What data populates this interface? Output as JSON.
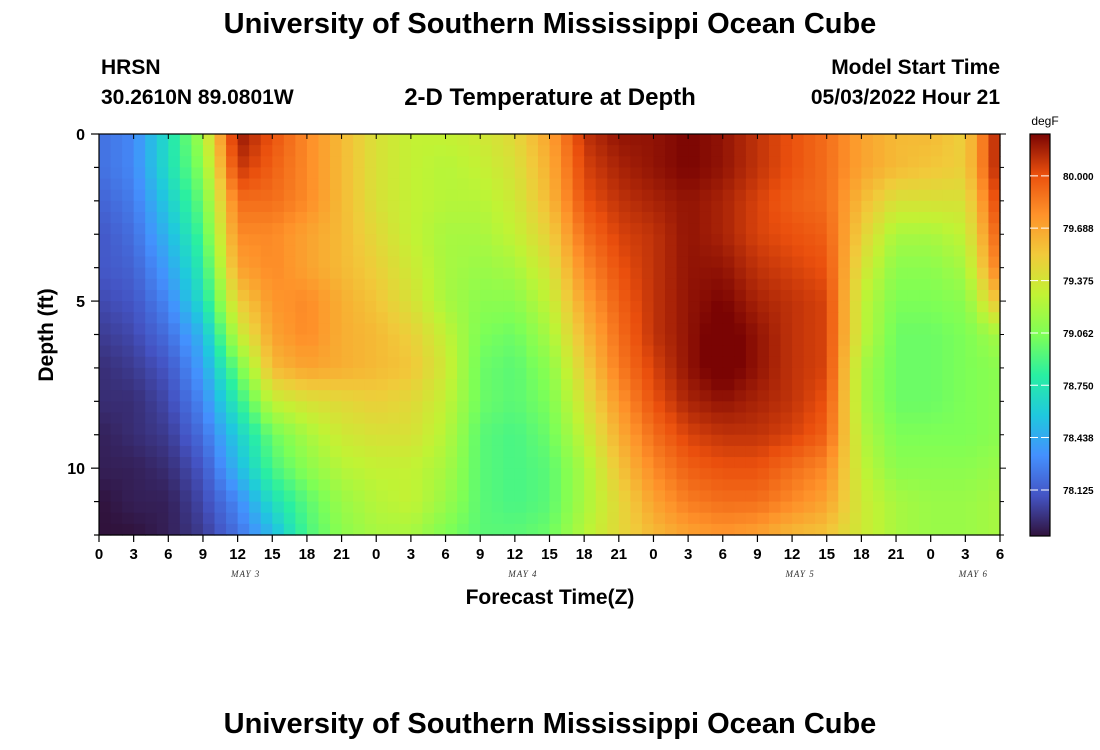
{
  "header": {
    "title": "University of Southern Mississippi Ocean Cube",
    "station": "HRSN",
    "coordinates": "30.2610N  89.0801W",
    "subtitle": "2-D Temperature at Depth",
    "start_label": "Model Start Time",
    "start_value": "05/03/2022 Hour 21"
  },
  "footer": {
    "title": "University of Southern Mississippi Ocean Cube"
  },
  "chart_data": {
    "type": "heatmap",
    "title": "2-D Temperature at Depth",
    "xlabel": "Forecast Time(Z)",
    "ylabel": "Depth (ft)",
    "x_hours": [
      0,
      3,
      6,
      9,
      12,
      15,
      18,
      21,
      0,
      3,
      6,
      9,
      12,
      15,
      18,
      21,
      0,
      3,
      6,
      9,
      12,
      15,
      18,
      21,
      0,
      3,
      6
    ],
    "x_tick_labels": [
      "0",
      "3",
      "6",
      "9",
      "12",
      "15",
      "18",
      "21",
      "0",
      "3",
      "6",
      "9",
      "12",
      "15",
      "18",
      "21",
      "0",
      "3",
      "6",
      "9",
      "12",
      "15",
      "18",
      "21",
      "0",
      "3",
      "6"
    ],
    "date_labels": [
      {
        "label": "MAY 3",
        "at_index": 4
      },
      {
        "label": "MAY 4",
        "at_index": 12
      },
      {
        "label": "MAY 5",
        "at_index": 20
      },
      {
        "label": "MAY 6",
        "at_index": 25
      }
    ],
    "depth_ft": [
      0,
      1,
      2,
      3,
      4,
      5,
      6,
      7,
      8,
      9,
      10,
      11,
      12
    ],
    "y_tick_labels": [
      "0",
      "5",
      "10"
    ],
    "ylim": [
      0,
      12
    ],
    "colorbar": {
      "unit": "degF",
      "min": 77.85,
      "max": 80.25,
      "tick_labels": [
        "80.000",
        "79.688",
        "79.375",
        "79.062",
        "78.750",
        "78.438",
        "78.125"
      ],
      "tick_values": [
        80.0,
        79.688,
        79.375,
        79.062,
        78.75,
        78.438,
        78.125
      ]
    },
    "temperature_degF": [
      [
        78.2,
        78.3,
        78.7,
        79.2,
        80.2,
        80.0,
        79.8,
        79.6,
        79.4,
        79.3,
        79.3,
        79.35,
        79.45,
        79.7,
        80.1,
        80.2,
        80.2,
        80.25,
        80.2,
        80.1,
        80.0,
        79.9,
        79.7,
        79.6,
        79.6,
        79.5,
        80.2
      ],
      [
        78.2,
        78.3,
        78.7,
        79.1,
        80.1,
        79.95,
        79.8,
        79.6,
        79.4,
        79.3,
        79.25,
        79.3,
        79.4,
        79.65,
        80.05,
        80.15,
        80.2,
        80.25,
        80.2,
        80.1,
        80.0,
        79.9,
        79.7,
        79.6,
        79.55,
        79.5,
        80.2
      ],
      [
        78.15,
        78.25,
        78.6,
        79.0,
        79.9,
        79.9,
        79.8,
        79.6,
        79.4,
        79.3,
        79.25,
        79.25,
        79.35,
        79.6,
        80.0,
        80.1,
        80.15,
        80.2,
        80.15,
        80.05,
        79.95,
        79.9,
        79.6,
        79.4,
        79.4,
        79.4,
        80.1
      ],
      [
        78.1,
        78.2,
        78.5,
        78.9,
        79.8,
        79.8,
        79.7,
        79.6,
        79.45,
        79.3,
        79.2,
        79.2,
        79.3,
        79.5,
        79.9,
        80.05,
        80.1,
        80.2,
        80.15,
        80.05,
        80.0,
        79.95,
        79.5,
        79.2,
        79.2,
        79.3,
        80.0
      ],
      [
        78.1,
        78.15,
        78.4,
        78.8,
        79.7,
        79.8,
        79.7,
        79.6,
        79.5,
        79.35,
        79.2,
        79.15,
        79.2,
        79.4,
        79.8,
        80.0,
        80.1,
        80.2,
        80.2,
        80.1,
        80.05,
        80.0,
        79.4,
        79.1,
        79.1,
        79.2,
        79.9
      ],
      [
        78.05,
        78.1,
        78.3,
        78.7,
        79.5,
        79.75,
        79.8,
        79.65,
        79.55,
        79.4,
        79.2,
        79.1,
        79.1,
        79.3,
        79.7,
        79.95,
        80.1,
        80.2,
        80.25,
        80.15,
        80.1,
        80.05,
        79.3,
        79.05,
        79.05,
        79.1,
        79.6
      ],
      [
        78.0,
        78.05,
        78.2,
        78.5,
        79.3,
        79.7,
        79.8,
        79.65,
        79.6,
        79.5,
        79.3,
        79.05,
        79.0,
        79.2,
        79.6,
        79.9,
        80.1,
        80.2,
        80.3,
        80.2,
        80.1,
        80.05,
        79.3,
        79.0,
        79.0,
        79.05,
        79.2
      ],
      [
        77.95,
        78.0,
        78.1,
        78.4,
        79.0,
        79.6,
        79.7,
        79.65,
        79.6,
        79.55,
        79.35,
        79.0,
        78.95,
        79.1,
        79.5,
        79.85,
        80.05,
        80.2,
        80.3,
        80.2,
        80.1,
        80.05,
        79.2,
        79.0,
        79.0,
        79.05,
        79.1
      ],
      [
        77.95,
        77.95,
        78.05,
        78.3,
        78.8,
        79.3,
        79.4,
        79.45,
        79.5,
        79.45,
        79.3,
        79.0,
        78.95,
        79.05,
        79.4,
        79.75,
        80.0,
        80.15,
        80.2,
        80.15,
        80.1,
        80.0,
        79.2,
        79.0,
        79.0,
        79.05,
        79.1
      ],
      [
        77.9,
        77.95,
        78.0,
        78.2,
        78.6,
        79.0,
        79.2,
        79.35,
        79.4,
        79.4,
        79.25,
        78.95,
        78.9,
        79.0,
        79.3,
        79.65,
        79.9,
        80.05,
        80.1,
        80.1,
        80.05,
        79.95,
        79.25,
        79.05,
        79.05,
        79.05,
        79.1
      ],
      [
        77.9,
        77.9,
        77.95,
        78.1,
        78.5,
        78.9,
        79.1,
        79.25,
        79.3,
        79.3,
        79.2,
        78.95,
        78.9,
        78.95,
        79.2,
        79.55,
        79.8,
        79.95,
        80.0,
        80.0,
        79.9,
        79.8,
        79.3,
        79.1,
        79.1,
        79.1,
        79.15
      ],
      [
        77.85,
        77.9,
        77.9,
        78.05,
        78.3,
        78.7,
        78.95,
        79.15,
        79.25,
        79.3,
        79.15,
        78.95,
        78.9,
        78.95,
        79.2,
        79.45,
        79.7,
        79.85,
        79.9,
        79.9,
        79.8,
        79.7,
        79.35,
        79.2,
        79.15,
        79.15,
        79.2
      ],
      [
        77.85,
        77.85,
        77.9,
        78.0,
        78.2,
        78.5,
        78.9,
        79.1,
        79.2,
        79.2,
        79.05,
        78.95,
        78.95,
        79.0,
        79.25,
        79.45,
        79.6,
        79.7,
        79.75,
        79.7,
        79.6,
        79.55,
        79.35,
        79.2,
        79.15,
        79.15,
        79.2
      ]
    ]
  }
}
